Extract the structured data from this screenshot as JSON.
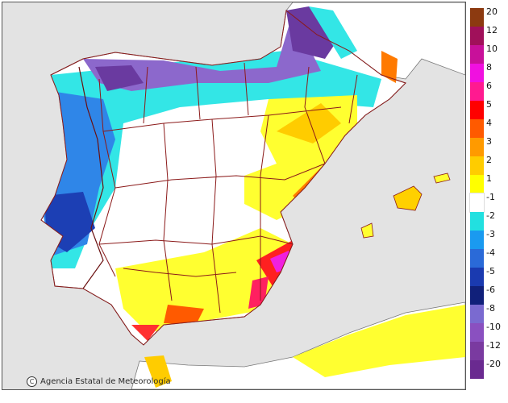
{
  "map": {
    "attribution": "Agencia Estatal de Meteorología",
    "copyright_symbol": "C",
    "colors": {
      "sea": "#e3e3e3",
      "land": "#ffffff",
      "border": "#8b1a1a"
    }
  },
  "legend": {
    "steps": [
      {
        "label": "20",
        "color": "#8c3a10"
      },
      {
        "label": "12",
        "color": "#a0105a"
      },
      {
        "label": "10",
        "color": "#c8109a"
      },
      {
        "label": "8",
        "color": "#f010e0"
      },
      {
        "label": "6",
        "color": "#ff1a90"
      },
      {
        "label": "5",
        "color": "#ff0000"
      },
      {
        "label": "4",
        "color": "#ff5a00"
      },
      {
        "label": "3",
        "color": "#ff9a00"
      },
      {
        "label": "2",
        "color": "#ffcc00"
      },
      {
        "label": "1",
        "color": "#ffff00"
      },
      {
        "label": "-1",
        "color": "#ffffff"
      },
      {
        "label": "-2",
        "color": "#22e0e0"
      },
      {
        "label": "-3",
        "color": "#1a9af0"
      },
      {
        "label": "-4",
        "color": "#2a6ad8"
      },
      {
        "label": "-5",
        "color": "#1a3ab0"
      },
      {
        "label": "-6",
        "color": "#10207a"
      },
      {
        "label": "-8",
        "color": "#7a6ad0"
      },
      {
        "label": "-10",
        "color": "#8a50c0"
      },
      {
        "label": "-12",
        "color": "#7a3aa0"
      },
      {
        "label": "-20",
        "color": "#6a2a90"
      }
    ]
  }
}
